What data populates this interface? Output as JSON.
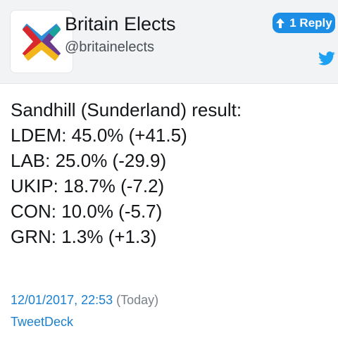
{
  "account": {
    "name": "Britain Elects",
    "handle": "@britainelects"
  },
  "reply_button": {
    "label": "1 Reply",
    "icon": "arrow-up-icon",
    "color": "#1d8ee6"
  },
  "platform_icon": "twitter-bird-icon",
  "tweet": {
    "lines": [
      "Sandhill (Sunderland) result:",
      "LDEM: 45.0% (+41.5)",
      "LAB: 25.0% (-29.9)",
      "UKIP: 18.7% (-7.2)",
      "CON: 10.0% (-5.7)",
      "GRN: 1.3% (+1.3)"
    ],
    "timestamp": "12/01/2017, 22:53",
    "relative_time": "(Today)",
    "source": "TweetDeck"
  },
  "colors": {
    "header_bg": "#f2f3f5",
    "link": "#1b7fcf",
    "logo_blue": "#2e8fd6",
    "logo_red": "#d9272e",
    "logo_teal": "#1aa39b",
    "logo_purple": "#6b3a8c",
    "logo_yellow": "#f2b51c"
  }
}
